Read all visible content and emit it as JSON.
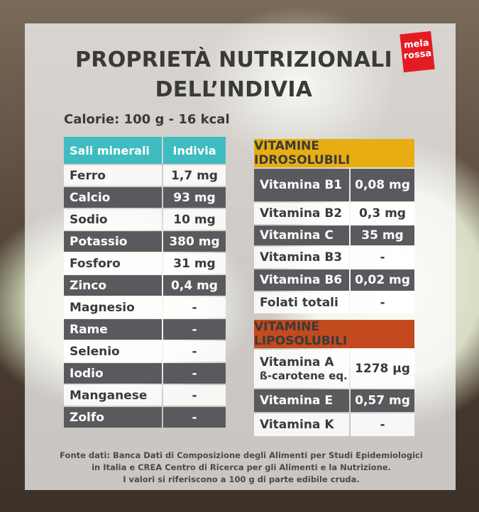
{
  "title_line1": "PROPRIETÀ NUTRIZIONALI",
  "title_line2": "DELL’INDIVIA",
  "logo": {
    "line1": "mela",
    "line2": "rossa"
  },
  "calorie": "Calorie: 100 g - 16 kcal",
  "minerals": {
    "header": [
      "Sali minerali",
      "Indivia"
    ],
    "rows": [
      [
        "Ferro",
        "1,7 mg"
      ],
      [
        "Calcio",
        "93 mg"
      ],
      [
        "Sodio",
        "10 mg"
      ],
      [
        "Potassio",
        "380 mg"
      ],
      [
        "Fosforo",
        "31 mg"
      ],
      [
        "Zinco",
        "0,4  mg"
      ],
      [
        "Magnesio",
        "-"
      ],
      [
        "Rame",
        "-"
      ],
      [
        "Selenio",
        "-"
      ],
      [
        "Iodio",
        "-"
      ],
      [
        "Manganese",
        "-"
      ],
      [
        "Zolfo",
        "-"
      ]
    ]
  },
  "water_vitamins": {
    "header": "VITAMINE IDROSOLUBILI",
    "rows": [
      [
        "Vitamina B1",
        "0,08 mg"
      ],
      [
        "Vitamina B2",
        "0,3 mg"
      ],
      [
        "Vitamina C",
        "35 mg"
      ],
      [
        "Vitamina B3",
        "-"
      ],
      [
        "Vitamina B6",
        "0,02 mg"
      ],
      [
        "Folati totali",
        "-"
      ]
    ]
  },
  "fat_vitamins": {
    "header": "VITAMINE LIPOSOLUBILI",
    "rows": [
      [
        "Vitamina A",
        "ß-carotene eq.",
        "1278 µg"
      ],
      [
        "Vitamina E",
        "",
        "0,57 mg"
      ],
      [
        "Vitamina K",
        "",
        "-"
      ]
    ]
  },
  "source": [
    "Fonte dati: Banca Dati di Composizione degli Alimenti per Studi Epidemiologici",
    "in Italia e CREA Centro di Ricerca per gli Alimenti e la Nutrizione.",
    "I valori si riferiscono a 100 g di parte edibile cruda."
  ],
  "colors": {
    "mineral_header": "#3fbcc0",
    "water_header": "#e8ad12",
    "fat_header": "#c24a1e",
    "dark_row": "#595a5e",
    "logo": "#e31c24"
  }
}
